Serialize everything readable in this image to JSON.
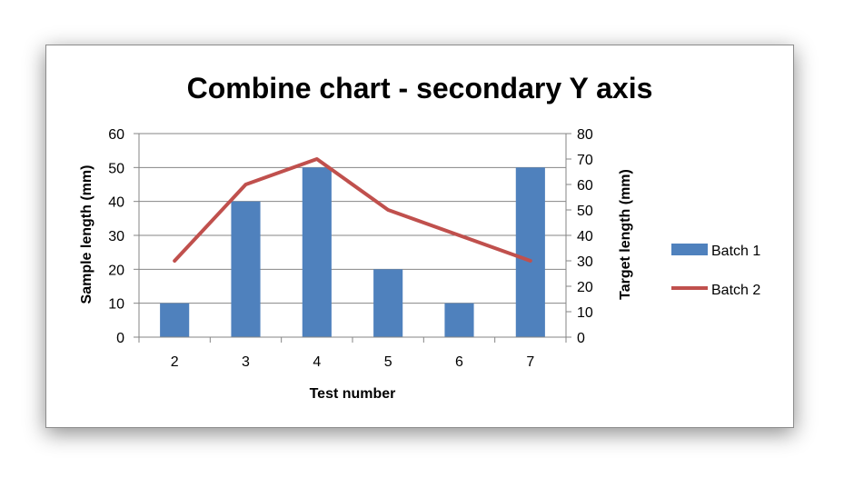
{
  "chart_data": {
    "type": "bar+line",
    "title": "Combine chart - secondary Y axis",
    "xlabel": "Test number",
    "ylabel": "Sample length (mm)",
    "y2label": "Target length (mm)",
    "categories": [
      "2",
      "3",
      "4",
      "5",
      "6",
      "7"
    ],
    "ylim": [
      0,
      60
    ],
    "y2lim": [
      0,
      80
    ],
    "yticks": [
      "0",
      "10",
      "20",
      "30",
      "40",
      "50",
      "60"
    ],
    "y2ticks": [
      "0",
      "10",
      "20",
      "30",
      "40",
      "50",
      "60",
      "70",
      "80"
    ],
    "grid": true,
    "legend_position": "right",
    "series": [
      {
        "name": "Batch 1",
        "type": "bar",
        "axis": "primary",
        "values": [
          10,
          40,
          50,
          20,
          10,
          50
        ],
        "color": "#4f81bd"
      },
      {
        "name": "Batch 2",
        "type": "line",
        "axis": "secondary",
        "values": [
          30,
          60,
          70,
          50,
          40,
          30
        ],
        "color": "#c0504d"
      }
    ]
  }
}
